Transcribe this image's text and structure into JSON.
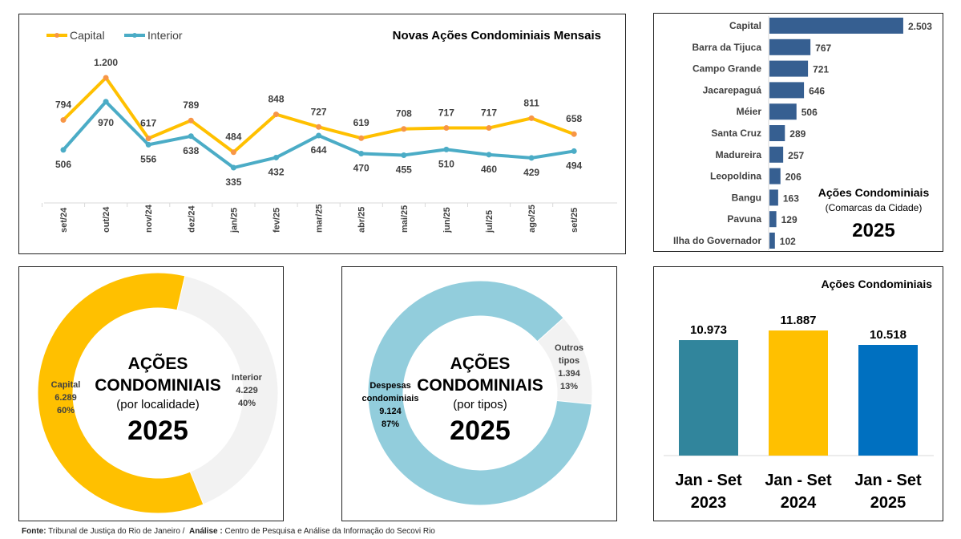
{
  "colors": {
    "capital": "#FFC000",
    "interior": "#4BACC6",
    "marker": "#F79646",
    "bars": "#365F91",
    "donut_interior": "#F2F2F2",
    "despesas": "#92CDDC",
    "outros": "#F2F2F2",
    "y2023": "#31859C",
    "y2024": "#FFC000",
    "y2025": "#0070C0"
  },
  "chart_data": [
    {
      "type": "line",
      "title": "Novas Ações Condominiais Mensais",
      "categories": [
        "set/24",
        "out/24",
        "nov/24",
        "dez/24",
        "jan/25",
        "fev/25",
        "mar/25",
        "abr/25",
        "mai/25",
        "jun/25",
        "jul/25",
        "ago/25",
        "set/25"
      ],
      "series": [
        {
          "name": "Capital",
          "values": [
            794,
            1200,
            617,
            789,
            484,
            848,
            727,
            619,
            708,
            717,
            717,
            811,
            658
          ],
          "labels": [
            "794",
            "1.200",
            "617",
            "789",
            "484",
            "848",
            "727",
            "619",
            "708",
            "717",
            "717",
            "811",
            "658"
          ]
        },
        {
          "name": "Interior",
          "values": [
            506,
            970,
            556,
            638,
            335,
            432,
            644,
            470,
            455,
            510,
            460,
            429,
            494
          ],
          "labels": [
            "506",
            "970",
            "556",
            "638",
            "335",
            "432",
            "644",
            "470",
            "455",
            "510",
            "460",
            "429",
            "494"
          ]
        }
      ],
      "legend": "top-left",
      "grid": false
    },
    {
      "type": "bar",
      "orientation": "horizontal",
      "title": "Ações Condominiais",
      "subtitle": "(Comarcas da Cidade)",
      "year": "2025",
      "categories": [
        "Capital",
        "Barra da Tijuca",
        "Campo Grande",
        "Jacarepaguá",
        "Méier",
        "Santa Cruz",
        "Madureira",
        "Leopoldina",
        "Bangu",
        "Pavuna",
        "Ilha do Governador"
      ],
      "values": [
        2503,
        767,
        721,
        646,
        506,
        289,
        257,
        206,
        163,
        129,
        102
      ],
      "labels": [
        "2.503",
        "767",
        "721",
        "646",
        "506",
        "289",
        "257",
        "206",
        "163",
        "129",
        "102"
      ]
    },
    {
      "type": "pie",
      "donut": true,
      "title": "AÇÕES CONDOMINIAIS",
      "subtitle": "(por localidade)",
      "year": "2025",
      "slices": [
        {
          "name": "Capital",
          "value": 6289,
          "label": "6.289",
          "pct": "60%"
        },
        {
          "name": "Interior",
          "value": 4229,
          "label": "4.229",
          "pct": "40%"
        }
      ]
    },
    {
      "type": "pie",
      "donut": true,
      "title": "AÇÕES CONDOMINIAIS",
      "subtitle": "(por tipos)",
      "year": "2025",
      "slices": [
        {
          "name": "Despesas condominiais",
          "value": 9124,
          "label": "9.124",
          "pct": "87%"
        },
        {
          "name": "Outros tipos",
          "value": 1394,
          "label": "1.394",
          "pct": "13%"
        }
      ]
    },
    {
      "type": "bar",
      "title": "Ações Condominiais",
      "categories": [
        "Jan - Set 2023",
        "Jan - Set 2024",
        "Jan - Set 2025"
      ],
      "values": [
        10973,
        11887,
        10518
      ],
      "labels": [
        "10.973",
        "11.887",
        "10.518"
      ]
    }
  ],
  "footer": {
    "fonte_label": "Fonte:",
    "fonte": "Tribunal  de  Justiça do Rio de Janeiro  /",
    "analise_label": "Análise :",
    "analise": "Centro de Pesquisa e Análise da Informação do Secovi Rio"
  }
}
